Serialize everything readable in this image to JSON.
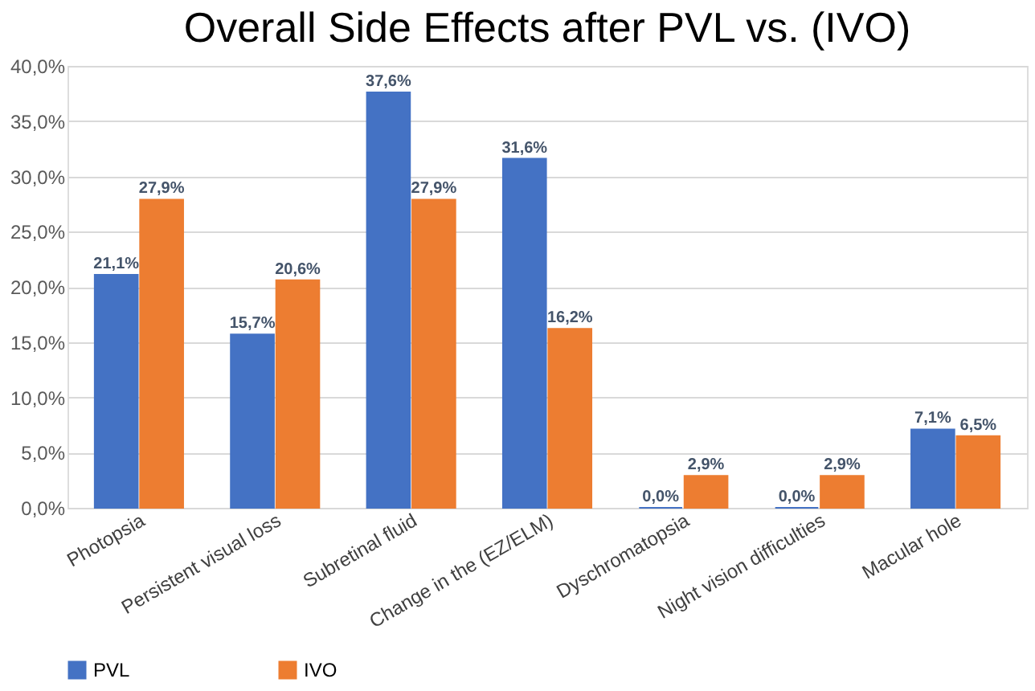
{
  "chart_data": {
    "type": "bar",
    "title": "Overall Side Effects after PVL vs. (IVO)",
    "categories": [
      "Photopsia",
      "Persistent visual loss",
      "Subretinal fluid",
      "Change in the (EZ/ELM)",
      "Dyschromatopsia",
      "Night vision difficulties",
      "Macular hole"
    ],
    "series": [
      {
        "name": "PVL",
        "color": "#4472c4",
        "values": [
          21.1,
          15.7,
          37.6,
          31.6,
          0.0,
          0.0,
          7.1
        ],
        "value_labels": [
          "21,1%",
          "15,7%",
          "37,6%",
          "31,6%",
          "0,0%",
          "0,0%",
          "7,1%"
        ]
      },
      {
        "name": "IVO",
        "color": "#ed7d31",
        "values": [
          27.9,
          20.6,
          27.9,
          16.2,
          2.9,
          2.9,
          6.5
        ],
        "value_labels": [
          "27,9%",
          "20,6%",
          "27,9%",
          "16,2%",
          "2,9%",
          "2,9%",
          "6,5%"
        ]
      }
    ],
    "ylim": [
      0,
      40
    ],
    "yticks": [
      {
        "value": 0,
        "label": "0,0%"
      },
      {
        "value": 5,
        "label": "5,0%"
      },
      {
        "value": 10,
        "label": "10,0%"
      },
      {
        "value": 15,
        "label": "15,0%"
      },
      {
        "value": 20,
        "label": "20,0%"
      },
      {
        "value": 25,
        "label": "25,0%"
      },
      {
        "value": 30,
        "label": "30,0%"
      },
      {
        "value": 35,
        "label": "35,0%"
      },
      {
        "value": 40,
        "label": "40,0%"
      }
    ],
    "grid": "y",
    "legend": "bottom"
  }
}
